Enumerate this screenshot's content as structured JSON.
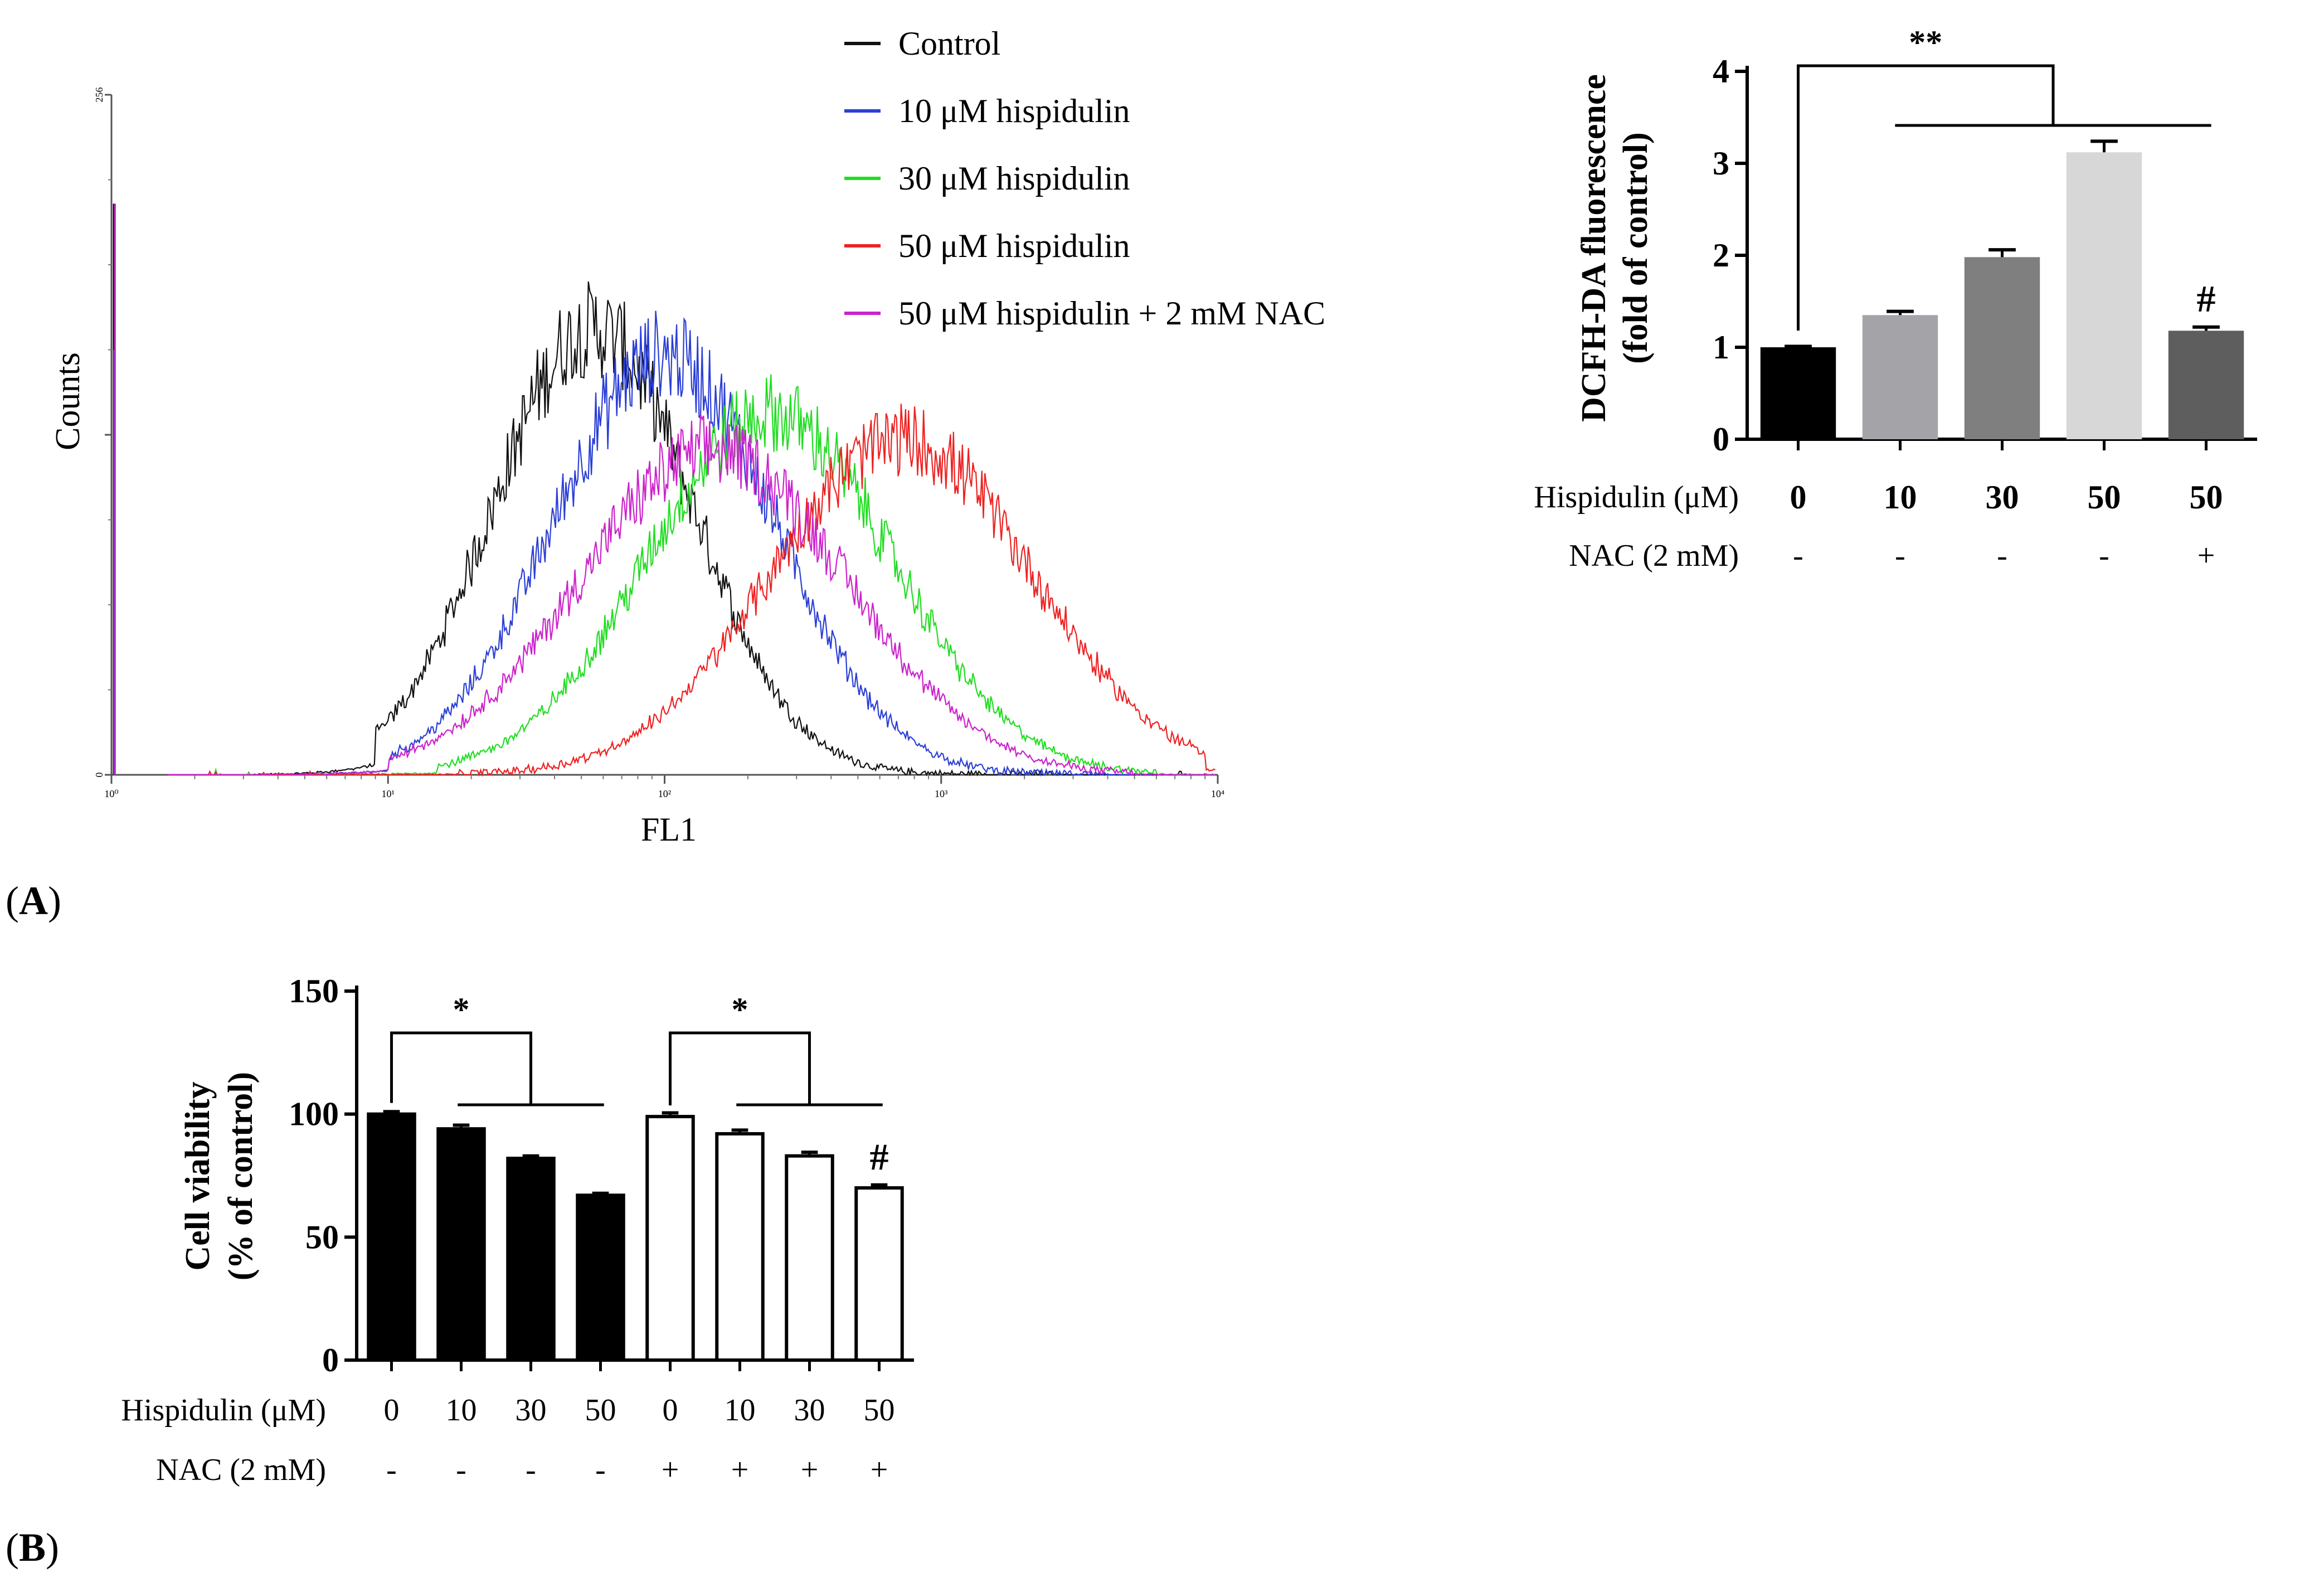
{
  "figure": {
    "panel_a_label": {
      "open": "(",
      "letter": "A",
      "close": ")"
    },
    "panel_b_label": {
      "open": "(",
      "letter": "B",
      "close": ")"
    }
  },
  "chart_data": [
    {
      "id": "histogram",
      "type": "line",
      "title": "",
      "xlabel": "FL1",
      "ylabel": "Counts",
      "x_scale": "log",
      "xlim": [
        1,
        10000
      ],
      "ylim": [
        0,
        256
      ],
      "x_ticks": [
        {
          "value": 1,
          "label": "10⁰"
        },
        {
          "value": 10,
          "label": "10¹"
        },
        {
          "value": 100,
          "label": "10²"
        },
        {
          "value": 1000,
          "label": "10³"
        },
        {
          "value": 10000,
          "label": "10⁴"
        }
      ],
      "y_ticks": [
        {
          "value": 0,
          "label": "0"
        },
        {
          "value": 128,
          "label": ""
        },
        {
          "value": 256,
          "label": "256"
        }
      ],
      "legend_position": "top-right",
      "series": [
        {
          "name": "Control",
          "color": "#111111",
          "peak_fl1": 55,
          "peak_counts": 168,
          "spread": 0.36,
          "start_fl1": 9,
          "end_fl1": 2500,
          "spike": 215
        },
        {
          "name": "10 μM hispidulin",
          "color": "#2b3fd6",
          "peak_fl1": 100,
          "peak_counts": 158,
          "spread": 0.4,
          "start_fl1": 10,
          "end_fl1": 4000,
          "spike": 160
        },
        {
          "name": "30 μM hispidulin",
          "color": "#22dd22",
          "peak_fl1": 240,
          "peak_counts": 136,
          "spread": 0.44,
          "start_fl1": 15,
          "end_fl1": 6000,
          "spike": 0
        },
        {
          "name": "50 μM hispidulin",
          "color": "#ee2222",
          "peak_fl1": 720,
          "peak_counts": 126,
          "spread": 0.47,
          "start_fl1": 18,
          "end_fl1": 9000,
          "spike": 0
        },
        {
          "name": "50 μM hispidulin + 2 mM NAC",
          "color": "#cc22cc",
          "peak_fl1": 150,
          "peak_counts": 122,
          "spread": 0.48,
          "start_fl1": 10,
          "end_fl1": 5000,
          "spike": 215
        }
      ]
    },
    {
      "id": "dcfh",
      "type": "bar",
      "ylabel": [
        "DCFH-DA fluorescence",
        "(fold of control)"
      ],
      "ylim": [
        0,
        4
      ],
      "y_ticks": [
        0,
        1,
        2,
        3,
        4
      ],
      "row_labels": [
        "Hispidulin (μM)",
        "NAC (2 mM)"
      ],
      "categories": [
        "0",
        "10",
        "30",
        "50",
        "50"
      ],
      "nac": [
        "-",
        "-",
        "-",
        "-",
        "+"
      ],
      "values": [
        1.0,
        1.35,
        1.98,
        3.12,
        1.18
      ],
      "errors": [
        0.01,
        0.04,
        0.08,
        0.12,
        0.04
      ],
      "colors": [
        "#000000",
        "#a4a4a8",
        "#7f7f7f",
        "#d7d7d7",
        "#5e5e5e"
      ],
      "annotations": [
        {
          "text": "**",
          "type": "bracket",
          "from": 0,
          "to": [
            1,
            4
          ]
        },
        {
          "text": "#",
          "type": "above",
          "bar": 4
        }
      ]
    },
    {
      "id": "viability",
      "type": "bar",
      "ylabel": [
        "Cell viability",
        "(% of control)"
      ],
      "ylim": [
        0,
        150
      ],
      "y_ticks": [
        0,
        50,
        100,
        150
      ],
      "row_labels": [
        "Hispidulin (μM)",
        "NAC (2 mM)"
      ],
      "categories": [
        "0",
        "10",
        "30",
        "50",
        "0",
        "10",
        "30",
        "50"
      ],
      "nac": [
        "-",
        "-",
        "-",
        "-",
        "+",
        "+",
        "+",
        "+"
      ],
      "values": [
        100,
        94,
        82,
        67,
        99,
        92,
        83,
        70
      ],
      "errors": [
        1.0,
        1.5,
        1.0,
        0.8,
        1.5,
        1.5,
        1.5,
        1.2
      ],
      "fill": [
        "#000000",
        "#000000",
        "#000000",
        "#000000",
        "#ffffff",
        "#ffffff",
        "#ffffff",
        "#ffffff"
      ],
      "annotations": [
        {
          "text": "*",
          "type": "bracket",
          "from": 0,
          "to": [
            1,
            3
          ]
        },
        {
          "text": "*",
          "type": "bracket",
          "from": 4,
          "to": [
            5,
            7
          ]
        },
        {
          "text": "#",
          "type": "above",
          "bar": 7
        }
      ]
    }
  ]
}
